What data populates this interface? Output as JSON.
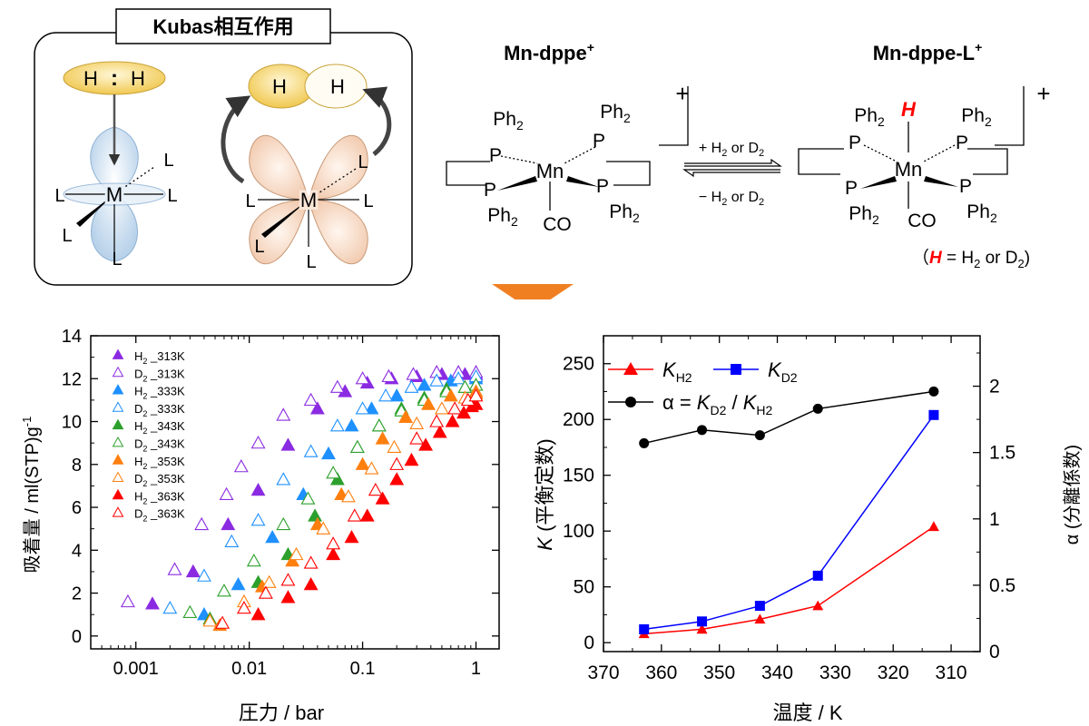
{
  "kubas": {
    "title": "Kubas相互作用",
    "hh_left": "H",
    "hh_colon": ":",
    "hh_right": "H",
    "metal": "M",
    "ligand": "L",
    "h": "H"
  },
  "scheme": {
    "left_name": "Mn-dppe",
    "right_name": "Mn-dppe-L",
    "charge_sup": "+",
    "charge": "+",
    "ph": "Ph",
    "ph_sub": "2",
    "p": "P",
    "mn": "Mn",
    "co": "CO",
    "h_ligand": "H",
    "fwd_a": "+ H",
    "fwd_sub": "2",
    "fwd_b": " or D",
    "fwd_sub2": "2",
    "rev_a": "− H",
    "rev_sub": "2",
    "rev_b": " or D",
    "rev_sub2": "2",
    "note_open": "（",
    "note_h": "H",
    "note_mid": " = H",
    "note_sub1": "2",
    "note_or": " or D",
    "note_sub2": "2",
    "note_close": ")"
  },
  "chart_data": [
    {
      "type": "scatter",
      "xlabel": "圧力 / bar",
      "ylabel_a": "吸着量 / ml(STP)g",
      "ylabel_sup": "-1",
      "xscale": "log",
      "xlim": [
        0.0004,
        1.6
      ],
      "ylim": [
        -0.6,
        14
      ],
      "xticks": [
        0.001,
        0.01,
        0.1,
        1
      ],
      "xtick_labels": [
        "0.001",
        "0.01",
        "0.1",
        "1"
      ],
      "yticks": [
        0,
        2,
        4,
        6,
        8,
        10,
        12,
        14
      ],
      "ytick_labels": [
        "0",
        "2",
        "4",
        "6",
        "8",
        "10",
        "12",
        "14"
      ],
      "series": [
        {
          "gas": "H",
          "temp": "_313K",
          "color": "#8a2be2",
          "filled": true,
          "x": [
            0.0014,
            0.0032,
            0.0065,
            0.012,
            0.022,
            0.04,
            0.07,
            0.11,
            0.18,
            0.3,
            0.5,
            0.8,
            1.0
          ],
          "y": [
            1.5,
            3.0,
            5.2,
            6.8,
            8.9,
            10.6,
            11.4,
            11.8,
            12.0,
            12.1,
            12.2,
            12.2,
            12.2
          ]
        },
        {
          "gas": "D",
          "temp": "_313K",
          "color": "#8a2be2",
          "filled": false,
          "x": [
            0.00085,
            0.0022,
            0.0038,
            0.0063,
            0.0085,
            0.012,
            0.02,
            0.035,
            0.06,
            0.1,
            0.17,
            0.28,
            0.45,
            0.7,
            1.0
          ],
          "y": [
            1.6,
            3.1,
            5.2,
            6.6,
            7.9,
            9.0,
            10.3,
            11.0,
            11.6,
            12.0,
            12.1,
            12.2,
            12.3,
            12.3,
            12.3
          ]
        },
        {
          "gas": "H",
          "temp": "_333K",
          "color": "#1e90ff",
          "filled": true,
          "x": [
            0.004,
            0.008,
            0.016,
            0.03,
            0.05,
            0.08,
            0.12,
            0.2,
            0.35,
            0.6,
            1.0
          ],
          "y": [
            1.0,
            2.4,
            4.6,
            6.6,
            8.5,
            9.8,
            10.6,
            11.2,
            11.7,
            11.9,
            12.0
          ]
        },
        {
          "gas": "D",
          "temp": "_333K",
          "color": "#1e90ff",
          "filled": false,
          "x": [
            0.002,
            0.004,
            0.007,
            0.012,
            0.02,
            0.035,
            0.06,
            0.1,
            0.16,
            0.27,
            0.45,
            0.7,
            1.0
          ],
          "y": [
            1.3,
            2.8,
            4.4,
            5.4,
            7.3,
            8.6,
            9.8,
            10.6,
            11.2,
            11.6,
            11.9,
            12.0,
            12.1
          ]
        },
        {
          "gas": "H",
          "temp": "_343K",
          "color": "#2ca02c",
          "filled": true,
          "x": [
            0.0045,
            0.012,
            0.022,
            0.038,
            0.06,
            0.09,
            0.14,
            0.22,
            0.35,
            0.55,
            0.8,
            1.0
          ],
          "y": [
            0.8,
            2.5,
            3.8,
            5.6,
            7.3,
            8.8,
            9.8,
            10.6,
            11.1,
            11.5,
            11.6,
            11.7
          ]
        },
        {
          "gas": "D",
          "temp": "_343K",
          "color": "#2ca02c",
          "filled": false,
          "x": [
            0.003,
            0.006,
            0.011,
            0.02,
            0.033,
            0.055,
            0.09,
            0.14,
            0.22,
            0.35,
            0.55,
            0.8,
            1.0
          ],
          "y": [
            1.1,
            2.1,
            3.5,
            5.2,
            6.4,
            7.6,
            8.8,
            9.8,
            10.5,
            11.0,
            11.4,
            11.6,
            11.7
          ]
        },
        {
          "gas": "H",
          "temp": "_353K",
          "color": "#ff7f0e",
          "filled": true,
          "x": [
            0.0055,
            0.013,
            0.024,
            0.04,
            0.065,
            0.1,
            0.15,
            0.24,
            0.38,
            0.6,
            1.0
          ],
          "y": [
            0.5,
            2.3,
            3.5,
            5.2,
            6.6,
            8.0,
            9.2,
            10.2,
            10.8,
            11.2,
            11.4
          ]
        },
        {
          "gas": "D",
          "temp": "_353K",
          "color": "#ff7f0e",
          "filled": false,
          "x": [
            0.0045,
            0.009,
            0.015,
            0.026,
            0.045,
            0.075,
            0.12,
            0.19,
            0.3,
            0.5,
            0.8,
            1.0
          ],
          "y": [
            0.7,
            1.6,
            2.5,
            3.8,
            5.0,
            6.5,
            7.8,
            8.8,
            9.9,
            10.6,
            11.1,
            11.3
          ]
        },
        {
          "gas": "H",
          "temp": "_363K",
          "color": "#ff0000",
          "filled": true,
          "x": [
            0.012,
            0.022,
            0.035,
            0.055,
            0.08,
            0.11,
            0.15,
            0.2,
            0.27,
            0.36,
            0.48,
            0.62,
            0.78,
            0.92,
            1.0
          ],
          "y": [
            1.0,
            1.8,
            2.4,
            3.8,
            4.6,
            5.6,
            6.4,
            7.3,
            8.2,
            8.9,
            9.5,
            10.0,
            10.4,
            10.7,
            10.8
          ]
        },
        {
          "gas": "D",
          "temp": "_363K",
          "color": "#ff0000",
          "filled": false,
          "x": [
            0.0058,
            0.009,
            0.014,
            0.022,
            0.035,
            0.055,
            0.085,
            0.13,
            0.2,
            0.3,
            0.45,
            0.65,
            0.85,
            1.0
          ],
          "y": [
            0.6,
            1.3,
            2.0,
            2.6,
            3.4,
            4.3,
            5.6,
            6.8,
            8.0,
            9.2,
            10.0,
            10.6,
            11.0,
            11.2
          ]
        }
      ]
    },
    {
      "type": "line",
      "xlabel": "温度 / K",
      "ylabel_left_k": "K",
      "ylabel_left_rest": " (平衡定数)",
      "ylabel_right": "α (分離係数)",
      "xlim": [
        370,
        305
      ],
      "ylim_left": [
        -8,
        275
      ],
      "ylim_right": [
        0,
        2.38
      ],
      "xticks": [
        370,
        360,
        350,
        340,
        330,
        320,
        310
      ],
      "xtick_labels": [
        "370",
        "360",
        "350",
        "340",
        "330",
        "320",
        "310"
      ],
      "yticks_left": [
        0,
        50,
        100,
        150,
        200,
        250
      ],
      "ytick_labels_left": [
        "0",
        "50",
        "100",
        "150",
        "200",
        "250"
      ],
      "yticks_right": [
        0,
        0.5,
        1,
        1.5,
        2
      ],
      "ytick_labels_right": [
        "0",
        "0.5",
        "1",
        "1.5",
        "2"
      ],
      "x": [
        363,
        353,
        343,
        333,
        313
      ],
      "series": [
        {
          "key": "K",
          "sub": "H2",
          "color": "#ff0000",
          "marker": "triangle",
          "axis": "left",
          "values": [
            8,
            12,
            21,
            33,
            104
          ]
        },
        {
          "key": "K",
          "sub": "D2",
          "color": "#0000ff",
          "marker": "square",
          "axis": "left",
          "values": [
            12,
            19,
            33,
            60,
            204
          ]
        },
        {
          "key": "alpha",
          "color": "#000000",
          "marker": "circle",
          "axis": "right",
          "values": [
            1.57,
            1.67,
            1.63,
            1.83,
            1.96
          ]
        }
      ],
      "legend": {
        "kh2_k": "K",
        "kh2_sub": "H2",
        "kd2_k": "K",
        "kd2_sub": "D2",
        "alpha_a": "α = ",
        "alpha_k1": "K",
        "alpha_sub1": "D2",
        "alpha_sep": " / ",
        "alpha_k2": "K",
        "alpha_sub2": "H2"
      }
    }
  ],
  "colors": {
    "arrow": "#f07f22",
    "orbital_blue": "#dbe8f4",
    "orbital_peach": "#f8e3d4",
    "h_yellow": "#f5d77a",
    "accent_red": "#ff0000"
  }
}
